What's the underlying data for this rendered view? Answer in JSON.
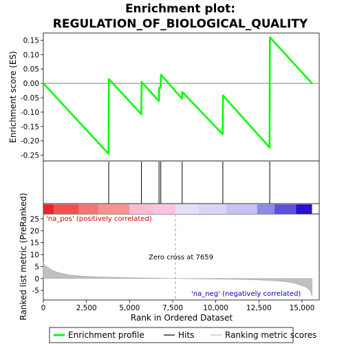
{
  "chart_data": {
    "type": "line",
    "title_line1": "Enrichment plot:",
    "title_line2": "REGULATION_OF_BIOLOGICAL_QUALITY",
    "xlabel": "Rank in Ordered Dataset",
    "ylabel_top": "Enrichment score (ES)",
    "ylabel_bottom": "Ranked list metric (PreRanked)",
    "xlim": [
      0,
      16000
    ],
    "x_ticks": [
      0,
      2500,
      5000,
      7500,
      10000,
      12500,
      15000
    ],
    "x_tick_labels": [
      "0",
      "2,500",
      "5,000",
      "7,500",
      "10,000",
      "12,500",
      "15,000"
    ],
    "es_ylim": [
      -0.27,
      0.175
    ],
    "es_ticks": [
      -0.25,
      -0.2,
      -0.15,
      -0.1,
      -0.05,
      0.0,
      0.05,
      0.1,
      0.15
    ],
    "es_tick_labels": [
      "-0.25",
      "-0.20",
      "-0.15",
      "-0.10",
      "-0.05",
      "0.00",
      "0.05",
      "0.10",
      "0.15"
    ],
    "metric_ylim": [
      -9,
      27
    ],
    "metric_ticks": [
      -5,
      0,
      5,
      10,
      15,
      20,
      25
    ],
    "metric_tick_labels": [
      "-5",
      "0",
      "5",
      "10",
      "15",
      "20",
      "25"
    ],
    "series": [
      {
        "name": "Enrichment profile",
        "color": "#00ff00",
        "x": [
          0,
          3780,
          3800,
          5680,
          5700,
          6700,
          6720,
          6800,
          6820,
          8040,
          8060,
          10400,
          10420,
          13120,
          13140,
          15580
        ],
        "y": [
          0.0,
          -0.245,
          0.015,
          -0.107,
          0.005,
          -0.062,
          -0.015,
          -0.015,
          0.03,
          -0.053,
          -0.03,
          -0.177,
          -0.042,
          -0.223,
          0.16,
          0.0
        ]
      }
    ],
    "hits": [
      3790,
      5690,
      6710,
      6810,
      8050,
      10410,
      13130
    ],
    "hits_color": "#000000",
    "ranking_metric": {
      "name": "Ranking metric scores",
      "color": "#c0c0c0",
      "x": [
        0,
        100,
        300,
        500,
        800,
        1200,
        1600,
        2200,
        3000,
        4000,
        5000,
        6000,
        7000,
        7659,
        8500,
        9500,
        10500,
        11500,
        12500,
        13200,
        13800,
        14200,
        14600,
        14900,
        15200,
        15400,
        15500,
        15580
      ],
      "y": [
        6.5,
        5.5,
        4.5,
        3.5,
        2.6,
        1.9,
        1.4,
        1.0,
        0.7,
        0.5,
        0.3,
        0.2,
        0.05,
        0.0,
        -0.1,
        -0.2,
        -0.3,
        -0.4,
        -0.6,
        -0.8,
        -1.1,
        -1.5,
        -2.0,
        -2.8,
        -3.5,
        -4.5,
        -5.5,
        -7.5
      ]
    },
    "zero_cross": 7659,
    "zero_cross_label": "Zero cross at 7659",
    "pos_label": "'na_pos' (positively correlated)",
    "neg_label": "'na_neg' (negatively correlated)",
    "heatmap_segments": [
      {
        "from": 0,
        "to": 600,
        "color": "#e8242a"
      },
      {
        "from": 600,
        "to": 2050,
        "color": "#f25050"
      },
      {
        "from": 2050,
        "to": 3200,
        "color": "#f77474"
      },
      {
        "from": 3200,
        "to": 5000,
        "color": "#fa9090"
      },
      {
        "from": 5000,
        "to": 6400,
        "color": "#fbbcd6"
      },
      {
        "from": 6400,
        "to": 7659,
        "color": "#fcc4e0"
      },
      {
        "from": 7659,
        "to": 9000,
        "color": "#e4e0f8"
      },
      {
        "from": 9000,
        "to": 10600,
        "color": "#d8d6f6"
      },
      {
        "from": 10600,
        "to": 12400,
        "color": "#c4c2f4"
      },
      {
        "from": 12400,
        "to": 13400,
        "color": "#8c88ec"
      },
      {
        "from": 13400,
        "to": 14650,
        "color": "#5e50dc"
      },
      {
        "from": 14650,
        "to": 15580,
        "color": "#2a10c8"
      }
    ],
    "legend": [
      {
        "label": "Enrichment profile",
        "color": "#00ff00",
        "kind": "thick"
      },
      {
        "label": "Hits",
        "color": "#000000",
        "kind": "thin"
      },
      {
        "label": "Ranking metric scores",
        "color": "#c0c0c0",
        "kind": "thin"
      }
    ]
  }
}
